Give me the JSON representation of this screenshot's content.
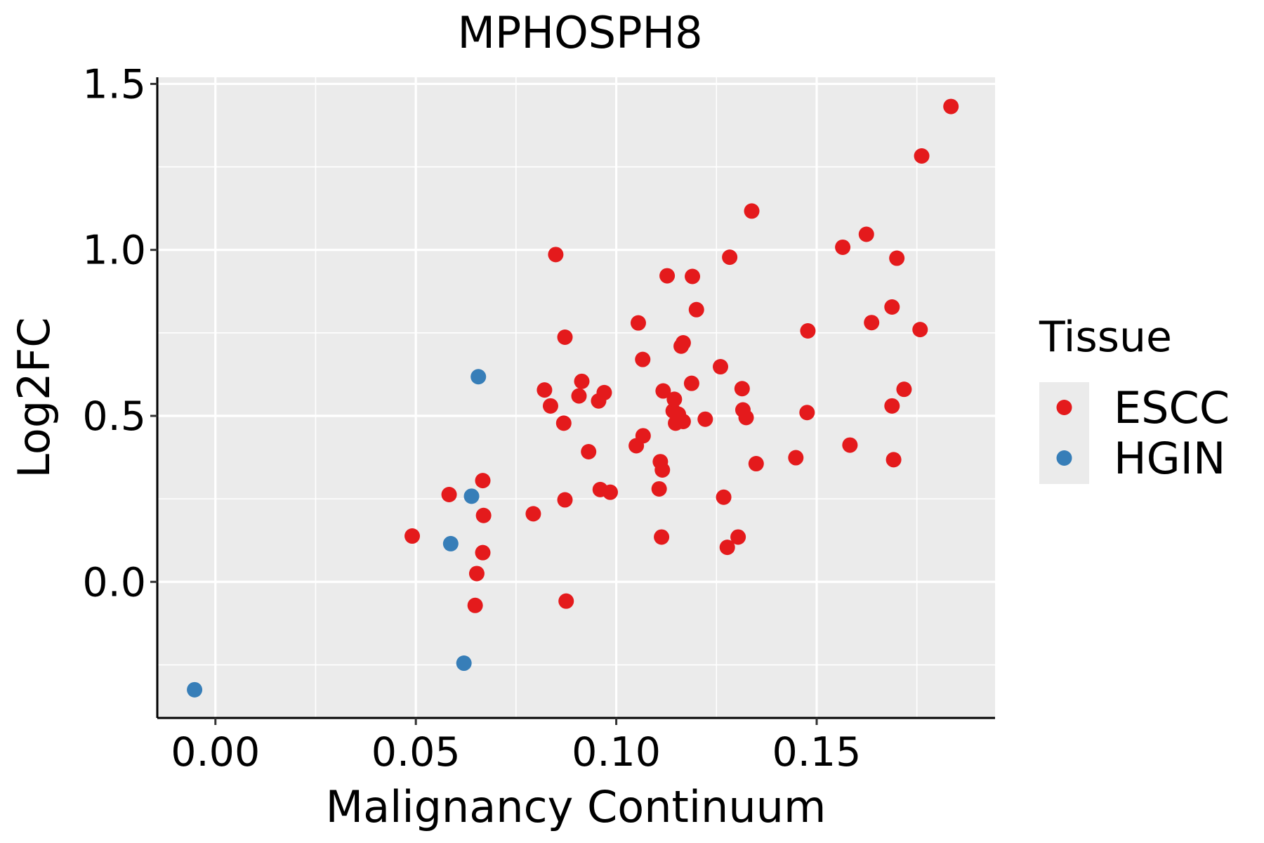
{
  "chart_data": {
    "type": "scatter",
    "title": "MPHOSPH8",
    "xlabel": "Malignancy Continuum",
    "ylabel": "Log2FC",
    "xlim": [
      -0.0145,
      0.1945
    ],
    "ylim": [
      -0.41,
      1.52
    ],
    "x_ticks": [
      0.0,
      0.05,
      0.1,
      0.15
    ],
    "x_tick_labels": [
      "0.00",
      "0.05",
      "0.10",
      "0.15"
    ],
    "y_ticks": [
      0.0,
      0.5,
      1.0,
      1.5
    ],
    "y_tick_labels": [
      "0.0",
      "0.5",
      "1.0",
      "1.5"
    ],
    "grid": true,
    "legend": {
      "title": "Tissue",
      "position": "right"
    },
    "series": [
      {
        "name": "ESCC",
        "color": "#e41a1c",
        "points": [
          [
            0.0491,
            0.138
          ],
          [
            0.0583,
            0.263
          ],
          [
            0.0648,
            -0.071
          ],
          [
            0.0652,
            0.025
          ],
          [
            0.0667,
            0.305
          ],
          [
            0.0669,
            0.2
          ],
          [
            0.0667,
            0.088
          ],
          [
            0.0793,
            0.205
          ],
          [
            0.0821,
            0.578
          ],
          [
            0.0836,
            0.53
          ],
          [
            0.0849,
            0.986
          ],
          [
            0.0869,
            0.478
          ],
          [
            0.0872,
            0.737
          ],
          [
            0.0872,
            0.247
          ],
          [
            0.0875,
            -0.058
          ],
          [
            0.0907,
            0.56
          ],
          [
            0.0914,
            0.604
          ],
          [
            0.0931,
            0.392
          ],
          [
            0.0956,
            0.545
          ],
          [
            0.096,
            0.278
          ],
          [
            0.097,
            0.57
          ],
          [
            0.0985,
            0.27
          ],
          [
            0.105,
            0.41
          ],
          [
            0.1055,
            0.78
          ],
          [
            0.1066,
            0.67
          ],
          [
            0.1067,
            0.44
          ],
          [
            0.1107,
            0.28
          ],
          [
            0.111,
            0.362
          ],
          [
            0.1115,
            0.337
          ],
          [
            0.1113,
            0.135
          ],
          [
            0.1117,
            0.575
          ],
          [
            0.1127,
            0.922
          ],
          [
            0.1142,
            0.515
          ],
          [
            0.1145,
            0.55
          ],
          [
            0.1148,
            0.478
          ],
          [
            0.1155,
            0.505
          ],
          [
            0.1162,
            0.71
          ],
          [
            0.1167,
            0.72
          ],
          [
            0.1167,
            0.483
          ],
          [
            0.1188,
            0.598
          ],
          [
            0.119,
            0.92
          ],
          [
            0.12,
            0.82
          ],
          [
            0.1222,
            0.49
          ],
          [
            0.126,
            0.648
          ],
          [
            0.1268,
            0.255
          ],
          [
            0.1277,
            0.104
          ],
          [
            0.1283,
            0.978
          ],
          [
            0.1304,
            0.135
          ],
          [
            0.1314,
            0.582
          ],
          [
            0.1316,
            0.518
          ],
          [
            0.1324,
            0.495
          ],
          [
            0.1338,
            1.117
          ],
          [
            0.1349,
            0.356
          ],
          [
            0.1448,
            0.374
          ],
          [
            0.1476,
            0.51
          ],
          [
            0.1478,
            0.756
          ],
          [
            0.1565,
            1.008
          ],
          [
            0.1583,
            0.412
          ],
          [
            0.1624,
            1.047
          ],
          [
            0.1637,
            0.781
          ],
          [
            0.1688,
            0.828
          ],
          [
            0.1688,
            0.53
          ],
          [
            0.1692,
            0.368
          ],
          [
            0.17,
            0.975
          ],
          [
            0.1718,
            0.58
          ],
          [
            0.1758,
            0.76
          ],
          [
            0.1762,
            1.283
          ],
          [
            0.1835,
            1.432
          ]
        ]
      },
      {
        "name": "HGIN",
        "color": "#377eb8",
        "points": [
          [
            -0.0052,
            -0.325
          ],
          [
            0.0587,
            0.115
          ],
          [
            0.062,
            -0.245
          ],
          [
            0.0639,
            0.258
          ],
          [
            0.0656,
            0.618
          ]
        ]
      }
    ]
  }
}
